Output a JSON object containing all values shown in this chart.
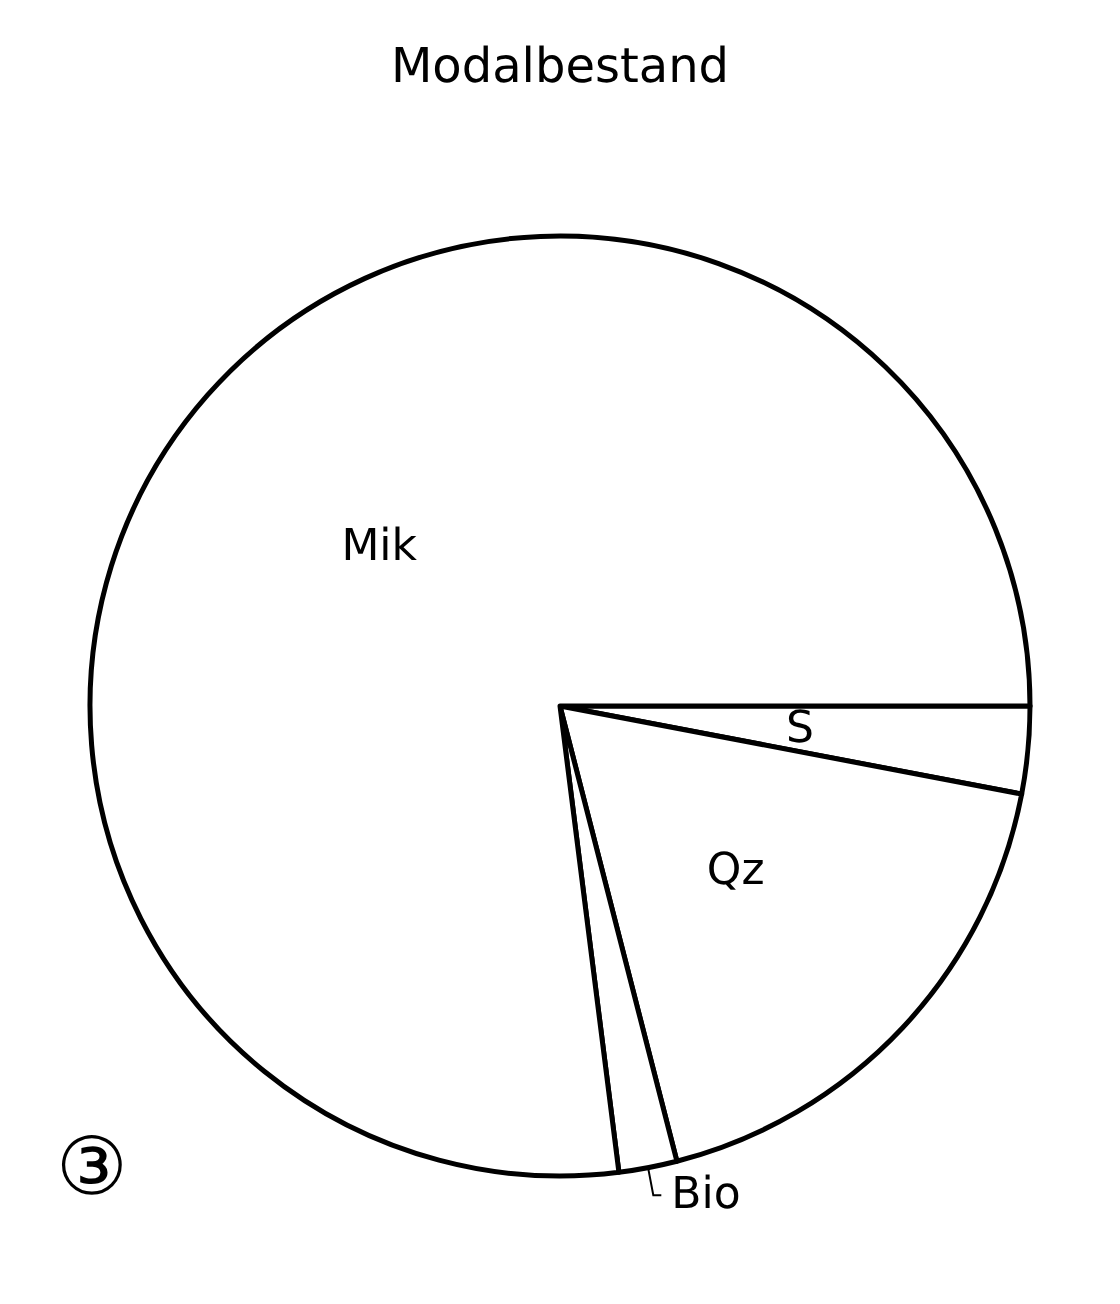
{
  "chart_data": {
    "type": "pie",
    "title": "Modalbestand",
    "categories": [
      "S",
      "Qz",
      "Bio",
      "Mik"
    ],
    "values": [
      3,
      18,
      2,
      77
    ],
    "colors": [
      "#ffffff",
      "#ffffff",
      "#ffffff",
      "#ffffff"
    ],
    "annotations": [
      "③"
    ]
  }
}
